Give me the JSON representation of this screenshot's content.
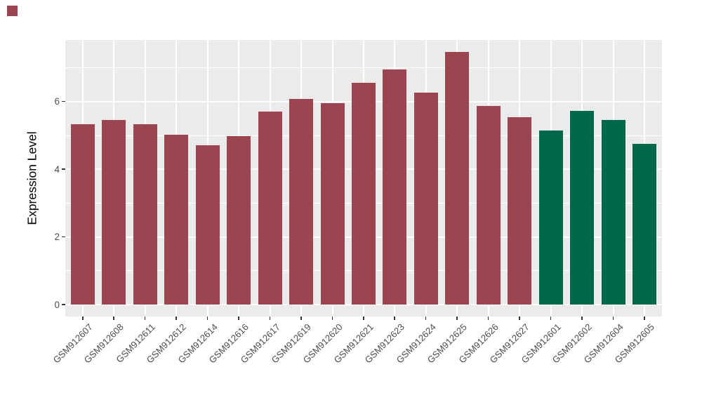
{
  "chart_data": {
    "type": "bar",
    "title": "",
    "xlabel": "",
    "ylabel": "Expression Level",
    "categories": [
      "GSM912607",
      "GSM912608",
      "GSM912611",
      "GSM912612",
      "GSM912614",
      "GSM912616",
      "GSM912617",
      "GSM912619",
      "GSM912620",
      "GSM912621",
      "GSM912623",
      "GSM912624",
      "GSM912625",
      "GSM912626",
      "GSM912627",
      "GSM912601",
      "GSM912602",
      "GSM912604",
      "GSM912605"
    ],
    "values": [
      5.33,
      5.45,
      5.34,
      5.03,
      4.71,
      4.99,
      5.7,
      6.09,
      5.96,
      6.55,
      6.95,
      6.26,
      7.47,
      5.88,
      5.55,
      5.15,
      5.72,
      5.47,
      4.75
    ],
    "bar_colors": [
      "#9C4450",
      "#9C4450",
      "#9C4450",
      "#9C4450",
      "#9C4450",
      "#9C4450",
      "#9C4450",
      "#9C4450",
      "#9C4450",
      "#9C4450",
      "#9C4450",
      "#9C4450",
      "#9C4450",
      "#9C4450",
      "#9C4450",
      "#00684A",
      "#00684A",
      "#00684A",
      "#00684A"
    ],
    "groups": [
      {
        "name": "maroon-group",
        "color": "#9C4450",
        "count": 15
      },
      {
        "name": "green-group",
        "color": "#00684A",
        "count": 4
      }
    ],
    "ylim": [
      0,
      7.83
    ],
    "yticks": [
      0,
      2,
      4,
      6
    ],
    "ytick_labels": [
      "0",
      "2",
      "4",
      "6"
    ],
    "minor_yticks": [
      1,
      3,
      5,
      7
    ],
    "grid": "on",
    "legend": "none",
    "x_label_angle_deg": 45,
    "panel_background": "#EBEBEB",
    "grid_color": "#FFFFFF",
    "tick_color": "#333333",
    "axis_text_color": "#4D4D4D"
  },
  "decorations": {
    "top_left_mark_color": "#9C4450"
  }
}
